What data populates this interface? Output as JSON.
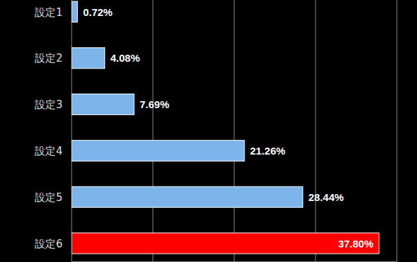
{
  "chart_data": {
    "type": "bar",
    "orientation": "horizontal",
    "categories": [
      "設定1",
      "設定2",
      "設定3",
      "設定4",
      "設定5",
      "設定6"
    ],
    "values": [
      0.72,
      4.08,
      7.69,
      21.26,
      28.44,
      37.8
    ],
    "value_labels": [
      "0.72%",
      "4.08%",
      "7.69%",
      "21.26%",
      "28.44%",
      "37.80%"
    ],
    "colors": [
      "#7db5ea",
      "#7db5ea",
      "#7db5ea",
      "#7db5ea",
      "#7db5ea",
      "#ff0000"
    ],
    "xlim": [
      0,
      40
    ],
    "xticks": [
      0,
      10,
      20,
      30,
      40
    ],
    "grid": true,
    "data_labels": true,
    "tick_labels": "y"
  }
}
